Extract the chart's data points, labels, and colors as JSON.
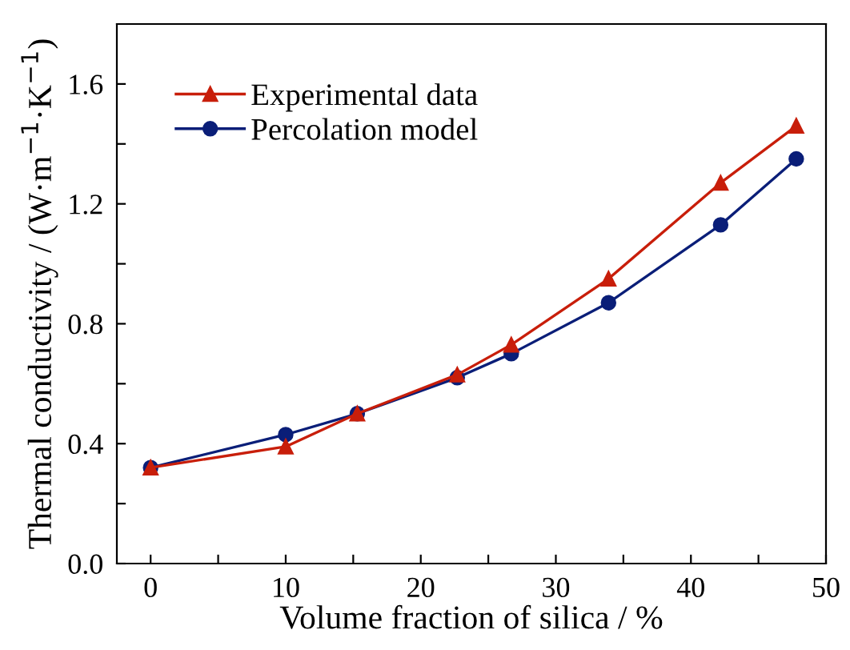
{
  "chart_data": {
    "type": "line",
    "xlabel": "Volume fraction of silica / %",
    "ylabel": "Thermal conductivity / (W·m$^{−1}$·K$^{−1}$)",
    "xlim": [
      -2.5,
      50
    ],
    "ylim": [
      0,
      1.8
    ],
    "xticks": [
      0,
      {
        "value": 5,
        "label": null
      },
      10,
      {
        "value": 15,
        "label": null
      },
      20,
      {
        "value": 25,
        "label": null
      },
      30,
      {
        "value": 35,
        "label": null
      },
      40,
      {
        "value": 45,
        "label": null
      },
      50
    ],
    "yticks": [
      "0.0",
      {
        "value": 0.2,
        "label": null
      },
      {
        "value": 0.4,
        "label": "0.4"
      },
      {
        "value": 0.6,
        "label": null
      },
      {
        "value": 0.8,
        "label": "0.8"
      },
      {
        "value": 1.0,
        "label": null
      },
      {
        "value": 1.2,
        "label": "1.2"
      },
      {
        "value": 1.4,
        "label": null
      },
      {
        "value": 1.6,
        "label": "1.6"
      }
    ],
    "legend": "top left",
    "grid": false,
    "series": [
      {
        "name": "Experimental data",
        "color": "#c81e0a",
        "marker": "triangle",
        "x": [
          0,
          10,
          15.3,
          22.7,
          26.7,
          33.9,
          42.2,
          47.8
        ],
        "values": [
          0.32,
          0.39,
          0.5,
          0.63,
          0.73,
          0.95,
          1.27,
          1.46
        ]
      },
      {
        "name": "Percolation model",
        "color": "#0a1e78",
        "marker": "circle",
        "x": [
          0,
          10,
          15.3,
          22.7,
          26.7,
          33.9,
          42.2,
          47.8
        ],
        "values": [
          0.32,
          0.43,
          0.5,
          0.62,
          0.7,
          0.87,
          1.13,
          1.35
        ]
      }
    ]
  }
}
